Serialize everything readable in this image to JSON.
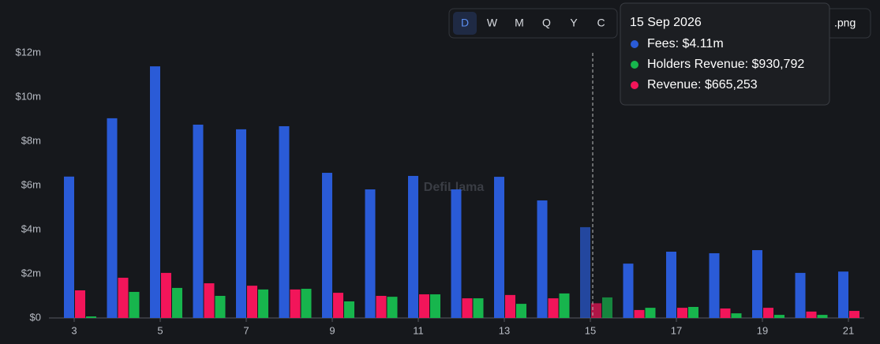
{
  "chart_data": {
    "type": "bar",
    "categories": [
      "3",
      null,
      "5",
      null,
      "7",
      null,
      "9",
      null,
      "11",
      null,
      "13",
      null,
      "15",
      null,
      "17",
      null,
      "19",
      null,
      "21"
    ],
    "series": [
      {
        "name": "Fees",
        "color": "#2a5bd7",
        "values": [
          6400000,
          9040000,
          11390000,
          8750000,
          8540000,
          8680000,
          6570000,
          5820000,
          6430000,
          5820000,
          6390000,
          5320000,
          4110000,
          2460000,
          3000000,
          2930000,
          3070000,
          2040000,
          2100000
        ]
      },
      {
        "name": "Revenue",
        "color": "#f2155a",
        "values": [
          1250000,
          1820000,
          2040000,
          1570000,
          1460000,
          1290000,
          1140000,
          1000000,
          1070000,
          890000,
          1040000,
          890000,
          665253,
          360000,
          460000,
          430000,
          460000,
          290000,
          320000
        ]
      },
      {
        "name": "Holders Revenue",
        "color": "#17b54d",
        "values": [
          70000,
          1180000,
          1360000,
          1000000,
          1290000,
          1320000,
          750000,
          960000,
          1070000,
          890000,
          640000,
          1110000,
          930792,
          460000,
          500000,
          210000,
          140000,
          140000,
          0
        ]
      }
    ],
    "ylim": [
      0,
      12000000
    ],
    "yticks": [
      {
        "value": 0,
        "label": "$0"
      },
      {
        "value": 2000000,
        "label": "$2m"
      },
      {
        "value": 4000000,
        "label": "$4m"
      },
      {
        "value": 6000000,
        "label": "$6m"
      },
      {
        "value": 8000000,
        "label": "$8m"
      },
      {
        "value": 10000000,
        "label": "$10m"
      },
      {
        "value": 12000000,
        "label": "$12m"
      }
    ],
    "grid": false,
    "highlight_index": 12,
    "tooltip": {
      "title": "15 Sep 2026",
      "items": [
        {
          "text": "Fees: $4.11m",
          "color": "#2a5bd7"
        },
        {
          "text": "Holders Revenue: $930,792",
          "color": "#17b54d"
        },
        {
          "text": "Revenue: $665,253",
          "color": "#f2155a"
        }
      ]
    },
    "controls": [
      "D",
      "W",
      "M",
      "Q",
      "Y",
      "C"
    ],
    "export_label": ".png",
    "watermark": "DefiLlama"
  }
}
